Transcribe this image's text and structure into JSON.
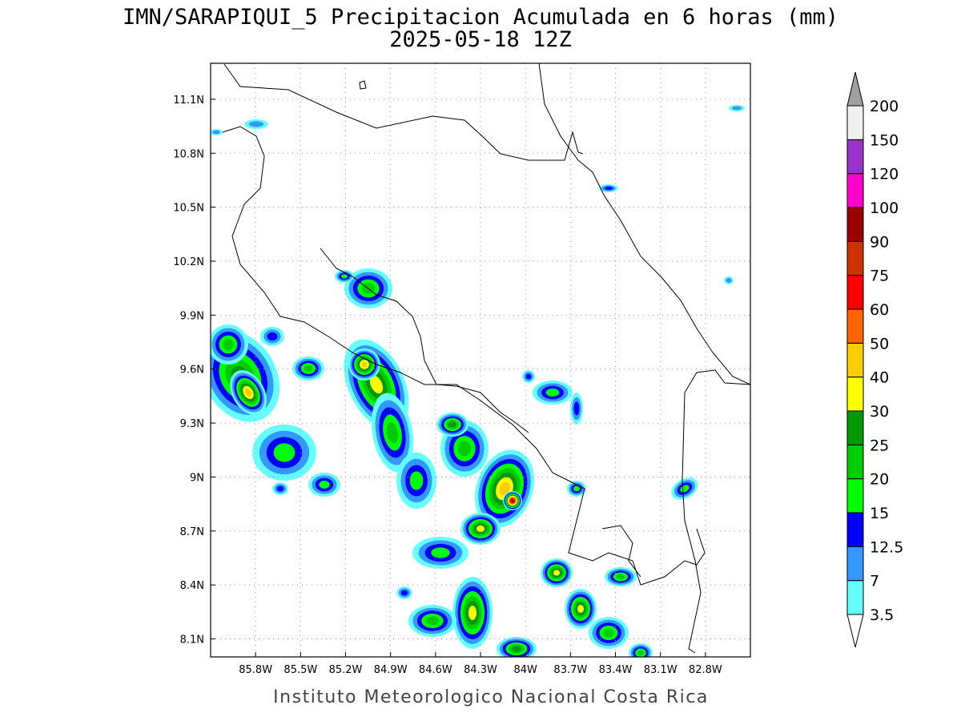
{
  "chart_data": {
    "type": "map",
    "title": "IMN/SARAPIQUI_5 Precipitacion Acumulada en 6 horas (mm)",
    "subtitle": "2025-05-18 12Z",
    "footer": "Instituto Meteorologico Nacional Costa Rica",
    "xlim": [
      -86.1,
      -82.5
    ],
    "ylim": [
      8.0,
      11.3
    ],
    "xticks": [
      {
        "value": -85.8,
        "label": "85.8W"
      },
      {
        "value": -85.5,
        "label": "85.5W"
      },
      {
        "value": -85.2,
        "label": "85.2W"
      },
      {
        "value": -84.9,
        "label": "84.9W"
      },
      {
        "value": -84.6,
        "label": "84.6W"
      },
      {
        "value": -84.3,
        "label": "84.3W"
      },
      {
        "value": -84.0,
        "label": "84W"
      },
      {
        "value": -83.7,
        "label": "83.7W"
      },
      {
        "value": -83.4,
        "label": "83.4W"
      },
      {
        "value": -83.1,
        "label": "83.1W"
      },
      {
        "value": -82.8,
        "label": "82.8W"
      }
    ],
    "yticks": [
      {
        "value": 8.1,
        "label": "8.1N"
      },
      {
        "value": 8.4,
        "label": "8.4N"
      },
      {
        "value": 8.7,
        "label": "8.7N"
      },
      {
        "value": 9.0,
        "label": "9N"
      },
      {
        "value": 9.3,
        "label": "9.3N"
      },
      {
        "value": 9.6,
        "label": "9.6N"
      },
      {
        "value": 9.9,
        "label": "9.9N"
      },
      {
        "value": 10.2,
        "label": "10.2N"
      },
      {
        "value": 10.5,
        "label": "10.5N"
      },
      {
        "value": 10.8,
        "label": "10.8N"
      },
      {
        "value": 11.1,
        "label": "11.1N"
      }
    ],
    "grid": true,
    "colorbar": {
      "levels": [
        3.5,
        7,
        12.5,
        15,
        20,
        25,
        30,
        40,
        50,
        60,
        75,
        90,
        100,
        120,
        150,
        200
      ],
      "colors": [
        "#ffffff",
        "#66ffff",
        "#3399ff",
        "#0000ff",
        "#00ff00",
        "#00cc00",
        "#009900",
        "#ffff00",
        "#ffcc00",
        "#ff6600",
        "#ff0000",
        "#cc3300",
        "#990000",
        "#ff00cc",
        "#9933cc",
        "#f0f0f0",
        "#a0a0a0"
      ]
    }
  }
}
